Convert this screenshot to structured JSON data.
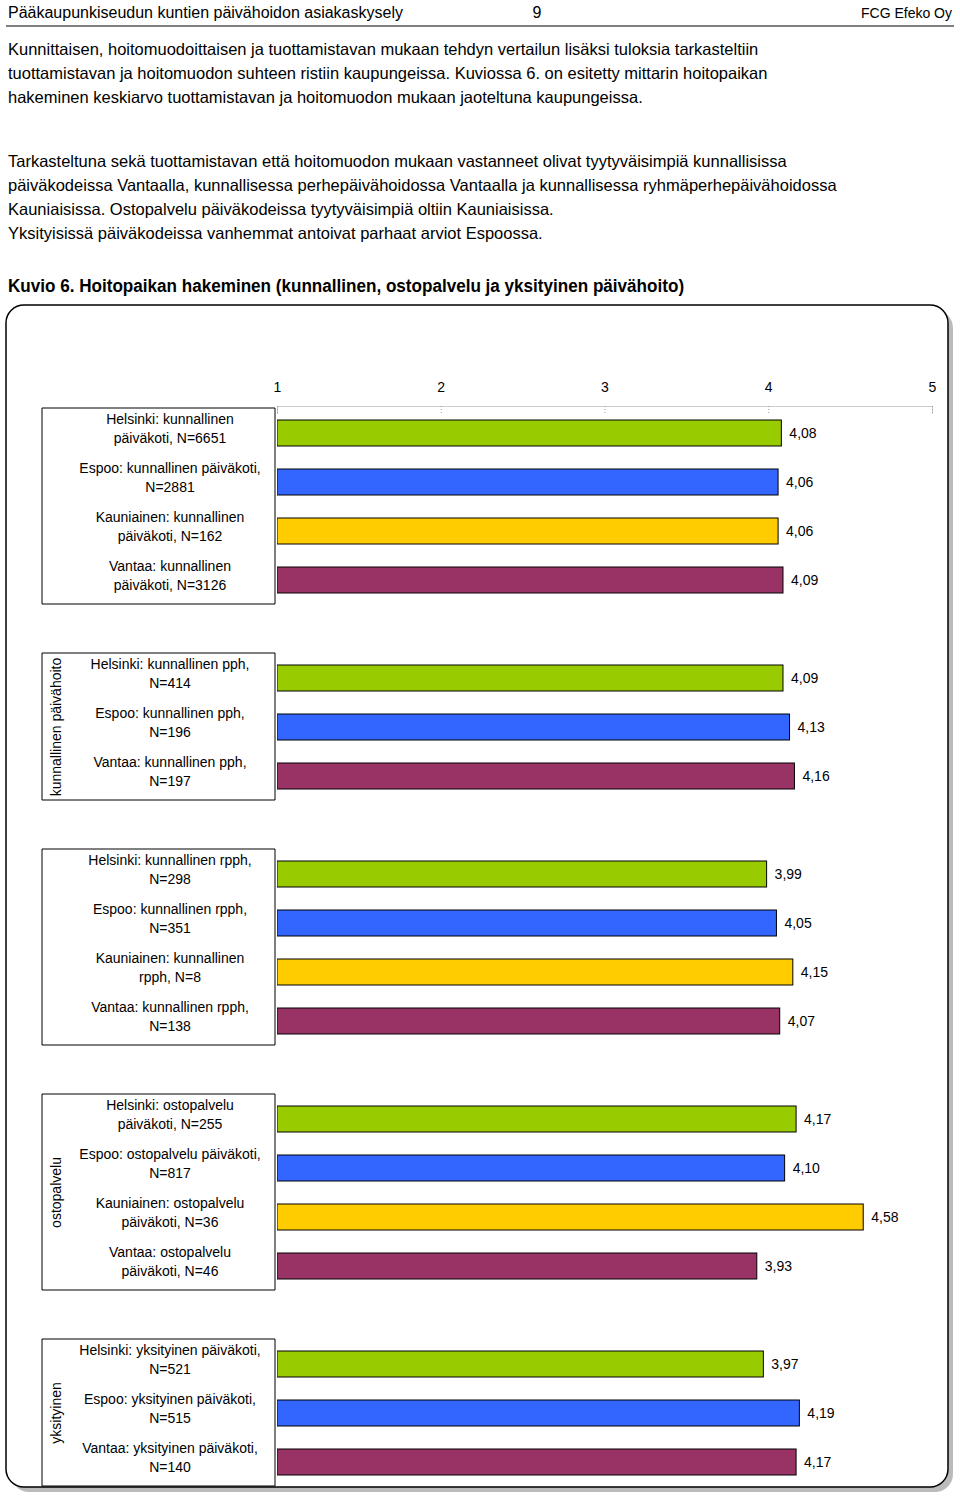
{
  "header": {
    "title": "Pääkaupunkiseudun kuntien päivähoidon asiakaskysely",
    "page": "9",
    "company": "FCG Efeko Oy"
  },
  "paragraphs": [
    [
      "Kunnittaisen, hoitomuodoittaisen ja tuottamistavan mukaan tehdyn vertailun lisäksi tuloksia tarkasteltiin",
      "tuottamistavan ja hoitomuodon suhteen ristiin kaupungeissa. Kuviossa 6. on esitetty mittarin hoitopaikan",
      "hakeminen keskiarvo tuottamistavan ja hoitomuodon mukaan jaoteltuna kaupungeissa."
    ],
    [
      "Tarkasteltuna sekä tuottamistavan että hoitomuodon mukaan vastanneet olivat tyytyväisimpiä kunnallisissa",
      "päiväkodeissa Vantaalla, kunnallisessa perhepäivähoidossa Vantaalla ja kunnallisessa ryhmäperhepäivähoidossa",
      "Kauniaisissa. Ostopalvelu päiväkodeissa tyytyväisimpiä oltiin Kauniaisissa.",
      "Yksityisissä päiväkodeissa vanhemmat antoivat parhaat arviot Espoossa."
    ]
  ],
  "caption": "Kuvio 6. Hoitopaikan hakeminen (kunnallinen, ostopalvelu ja yksityinen päivähoito)",
  "chart_data": {
    "type": "bar",
    "orientation": "horizontal",
    "data_labels": true,
    "xlim": [
      1,
      5
    ],
    "xticks": [
      1,
      2,
      3,
      4,
      5
    ],
    "groups": [
      {
        "categories": [
          "Helsinki: kunnallinen\npäiväkoti, N=6651",
          "Espoo: kunnallinen päiväkoti,\nN=2881",
          "Kauniainen: kunnallinen\npäiväkoti, N=162",
          "Vantaa: kunnallinen\npäiväkoti, N=3126"
        ],
        "values": [
          4.08,
          4.06,
          4.06,
          4.09
        ],
        "value_labels": [
          "4,08",
          "4,06",
          "4,06",
          "4,09"
        ],
        "colors": [
          "#99cc00",
          "#3366ff",
          "#ffcc00",
          "#993366"
        ]
      },
      {
        "label": "kunnallinen päivähoito",
        "categories": [
          "Helsinki: kunnallinen pph,\nN=414",
          "Espoo: kunnallinen pph,\nN=196",
          "Vantaa: kunnallinen pph,\nN=197"
        ],
        "values": [
          4.09,
          4.13,
          4.16
        ],
        "value_labels": [
          "4,09",
          "4,13",
          "4,16"
        ],
        "colors": [
          "#99cc00",
          "#3366ff",
          "#993366"
        ]
      },
      {
        "categories": [
          "Helsinki: kunnallinen rpph,\nN=298",
          "Espoo: kunnallinen rpph,\nN=351",
          "Kauniainen: kunnallinen\nrpph, N=8",
          "Vantaa: kunnallinen rpph,\nN=138"
        ],
        "values": [
          3.99,
          4.05,
          4.15,
          4.07
        ],
        "value_labels": [
          "3,99",
          "4,05",
          "4,15",
          "4,07"
        ],
        "colors": [
          "#99cc00",
          "#3366ff",
          "#ffcc00",
          "#993366"
        ]
      },
      {
        "label": "ostopalvelu",
        "categories": [
          "Helsinki: ostopalvelu\npäiväkoti, N=255",
          "Espoo: ostopalvelu päiväkoti,\nN=817",
          "Kauniainen: ostopalvelu\npäiväkoti, N=36",
          "Vantaa: ostopalvelu\npäiväkoti, N=46"
        ],
        "values": [
          4.17,
          4.1,
          4.58,
          3.93
        ],
        "value_labels": [
          "4,17",
          "4,10",
          "4,58",
          "3,93"
        ],
        "colors": [
          "#99cc00",
          "#3366ff",
          "#ffcc00",
          "#993366"
        ]
      },
      {
        "label": "yksityinen",
        "categories": [
          "Helsinki: yksityinen päiväkoti,\nN=521",
          "Espoo: yksityinen päiväkoti,\nN=515",
          "Vantaa: yksityinen päiväkoti,\nN=140"
        ],
        "values": [
          3.97,
          4.19,
          4.17
        ],
        "value_labels": [
          "3,97",
          "4,19",
          "4,17"
        ],
        "colors": [
          "#99cc00",
          "#3366ff",
          "#993366"
        ]
      }
    ]
  }
}
